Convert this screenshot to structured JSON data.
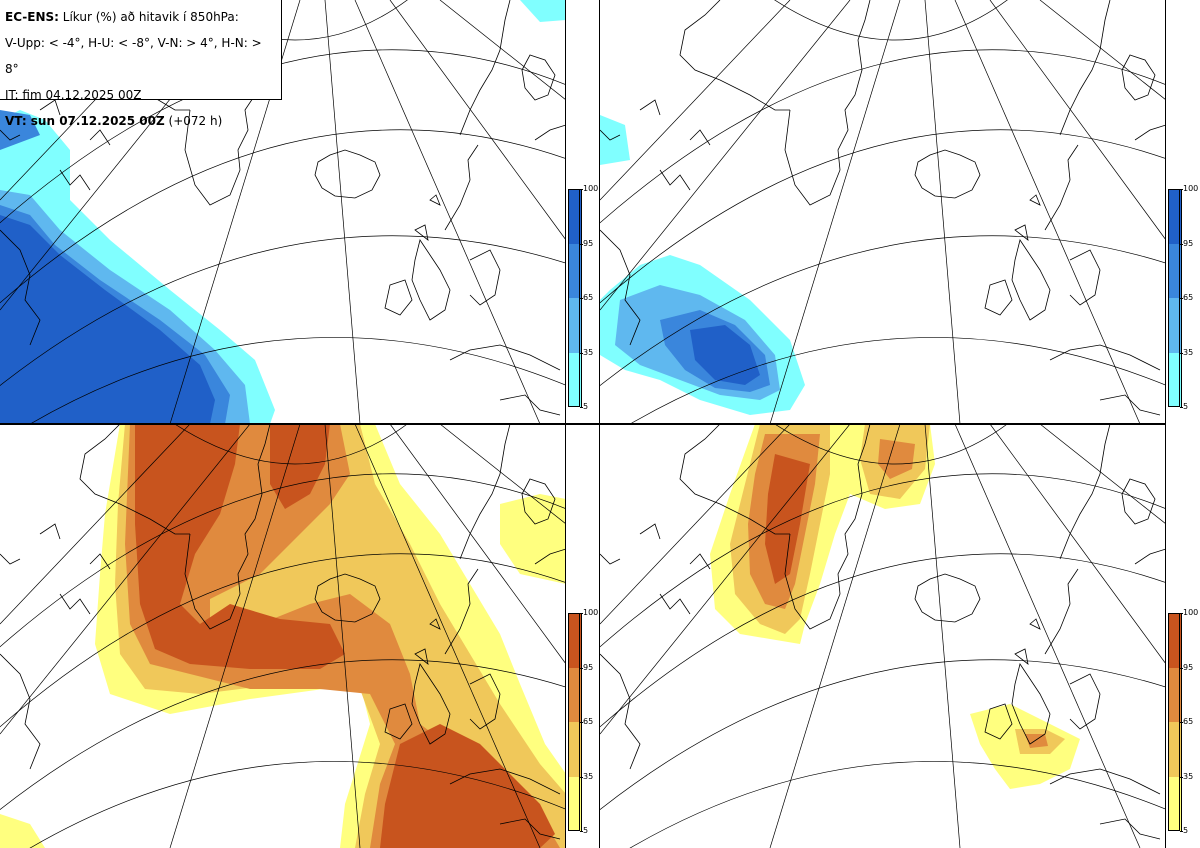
{
  "info": {
    "title_prefix": "EC-ENS:",
    "title_text": "Líkur (%) að hitavik í 850hPa:",
    "legend_line": "V-Upp: < -4°, H-U: < -8°, V-N: > 4°, H-N: > 8°",
    "init_time": "IT: fim 04.12.2025 00Z",
    "valid_prefix": "VT: sun 07.12.2025 00Z",
    "valid_suffix": "(+072 h)"
  },
  "panels": [
    {
      "id": "V-Upp",
      "threshold": "< -4°",
      "palette": "blue"
    },
    {
      "id": "H-U",
      "threshold": "< -8°",
      "palette": "blue"
    },
    {
      "id": "V-N",
      "threshold": "> 4°",
      "palette": "orange"
    },
    {
      "id": "H-N",
      "threshold": "> 8°",
      "palette": "orange"
    }
  ],
  "colorbar": {
    "tick_labels": [
      "100",
      "95",
      "65",
      "35",
      "5"
    ],
    "blue_colors": [
      "#2060c8",
      "#3a86dc",
      "#5fb8ef",
      "#80ffff"
    ],
    "orange_colors": [
      "#c8541e",
      "#e08a3e",
      "#f0c85a",
      "#ffff7f"
    ]
  }
}
